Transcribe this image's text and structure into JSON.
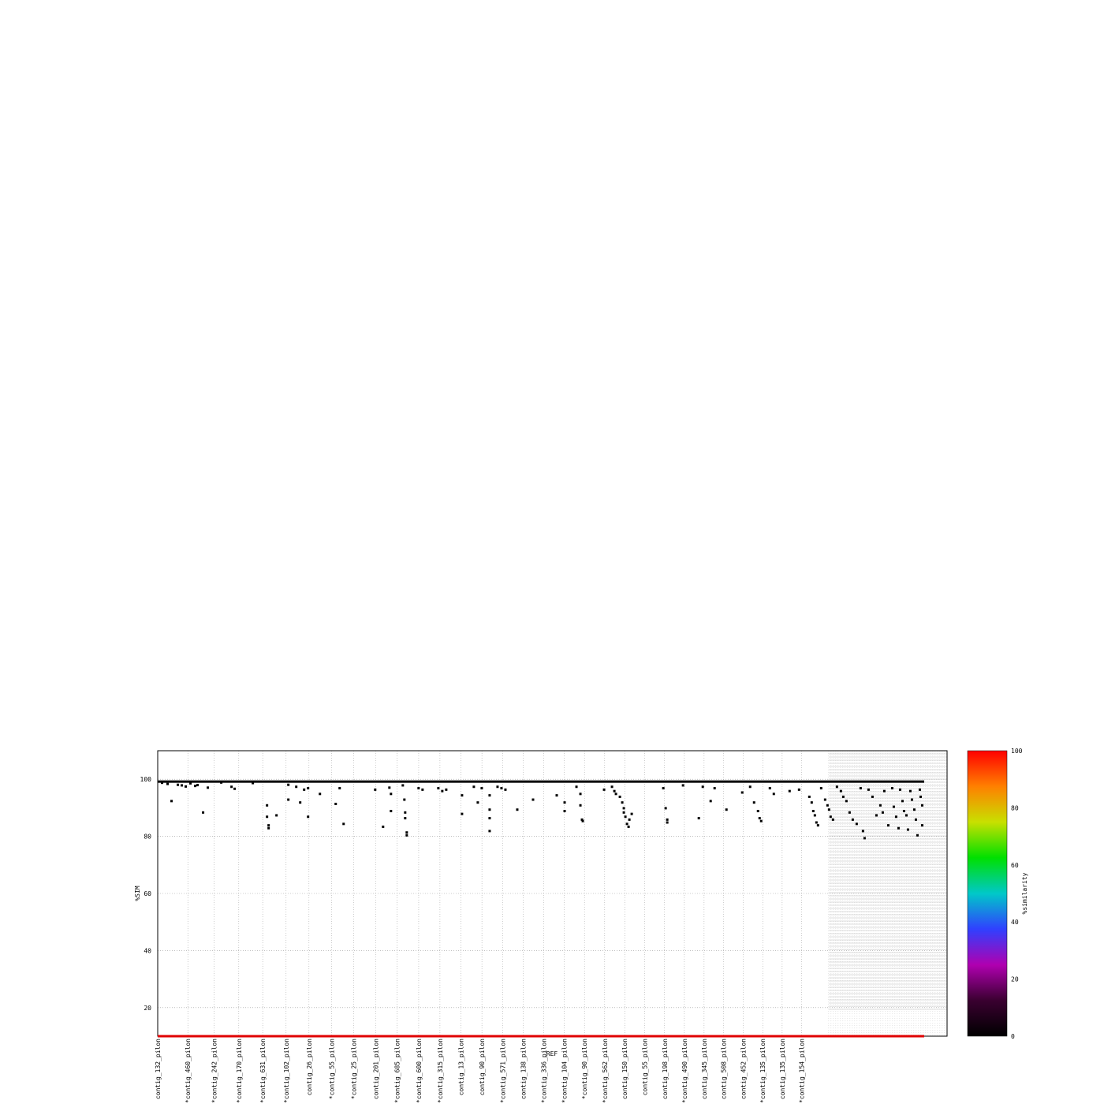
{
  "chart_data": {
    "type": "scatter",
    "title": "",
    "xlabel": "REF",
    "ylabel": "%SIM",
    "ylim": [
      10,
      110
    ],
    "yticks": [
      20,
      40,
      60,
      80,
      100
    ],
    "grid": true,
    "x_tick_labels": [
      "contig_132_pilon",
      "*contig_460_pilon",
      "*contig_242_pilon",
      "*contig_170_pilon",
      "*contig_631_pilon",
      "*contig_102_pilon",
      "contig_26_pilon",
      "*contig_55_pilon",
      "*contig_25_pilon",
      "contig_201_pilon",
      "*contig_685_pilon",
      "*contig_600_pilon",
      "*contig_315_pilon",
      "contig_13_pilon",
      "contig_90_pilon",
      "*contig_571_pilon",
      "contig_138_pilon",
      "*contig_336_pilon",
      "*contig_104_pilon",
      "*contig_90_pilon",
      "*contig_562_pilon",
      "contig_150_pilon",
      "contig_55_pilon",
      "contig_198_pilon",
      "*contig_490_pilon",
      "contig_345_pilon",
      "contig_508_pilon",
      "contig_452_pilon",
      "*contig_135_pilon",
      "contig_135_pilon",
      "*contig_154_pilon"
    ],
    "series": [
      {
        "description": "points",
        "points": [
          [
            0.005,
            98.9
          ],
          [
            0.012,
            98.5
          ],
          [
            0.017,
            92.5
          ],
          [
            0.025,
            98.2
          ],
          [
            0.03,
            98.0
          ],
          [
            0.035,
            97.6
          ],
          [
            0.041,
            98.7
          ],
          [
            0.047,
            97.8
          ],
          [
            0.05,
            98.1
          ],
          [
            0.057,
            88.5
          ],
          [
            0.063,
            97.2
          ],
          [
            0.08,
            99.0
          ],
          [
            0.093,
            97.5
          ],
          [
            0.097,
            96.8
          ],
          [
            0.12,
            98.8
          ],
          [
            0.138,
            91.0
          ],
          [
            0.138,
            87.0
          ],
          [
            0.14,
            84.0
          ],
          [
            0.14,
            83.0
          ],
          [
            0.15,
            87.5
          ],
          [
            0.165,
            93.0
          ],
          [
            0.165,
            98.2
          ],
          [
            0.175,
            97.5
          ],
          [
            0.18,
            92.0
          ],
          [
            0.185,
            96.5
          ],
          [
            0.19,
            87.0
          ],
          [
            0.19,
            97.0
          ],
          [
            0.205,
            95.0
          ],
          [
            0.225,
            91.5
          ],
          [
            0.23,
            97.0
          ],
          [
            0.235,
            84.5
          ],
          [
            0.275,
            96.5
          ],
          [
            0.285,
            83.5
          ],
          [
            0.293,
            97.2
          ],
          [
            0.295,
            95.0
          ],
          [
            0.295,
            89.0
          ],
          [
            0.31,
            98.0
          ],
          [
            0.312,
            93.0
          ],
          [
            0.313,
            88.5
          ],
          [
            0.313,
            86.5
          ],
          [
            0.315,
            81.5
          ],
          [
            0.315,
            80.5
          ],
          [
            0.33,
            97.0
          ],
          [
            0.335,
            96.5
          ],
          [
            0.355,
            97.0
          ],
          [
            0.36,
            96.0
          ],
          [
            0.365,
            96.5
          ],
          [
            0.385,
            94.5
          ],
          [
            0.385,
            88.0
          ],
          [
            0.4,
            97.5
          ],
          [
            0.405,
            92.0
          ],
          [
            0.41,
            97.0
          ],
          [
            0.42,
            94.5
          ],
          [
            0.42,
            89.5
          ],
          [
            0.42,
            86.5
          ],
          [
            0.42,
            82.0
          ],
          [
            0.43,
            97.5
          ],
          [
            0.435,
            97.0
          ],
          [
            0.44,
            96.5
          ],
          [
            0.455,
            89.5
          ],
          [
            0.475,
            93.0
          ],
          [
            0.505,
            94.5
          ],
          [
            0.515,
            92.0
          ],
          [
            0.515,
            89.0
          ],
          [
            0.53,
            97.5
          ],
          [
            0.535,
            95.0
          ],
          [
            0.535,
            91.0
          ],
          [
            0.537,
            86.0
          ],
          [
            0.538,
            85.5
          ],
          [
            0.565,
            96.5
          ],
          [
            0.575,
            97.5
          ],
          [
            0.578,
            96.0
          ],
          [
            0.58,
            95.0
          ],
          [
            0.585,
            94.0
          ],
          [
            0.588,
            92.0
          ],
          [
            0.59,
            90.0
          ],
          [
            0.59,
            88.5
          ],
          [
            0.592,
            87.0
          ],
          [
            0.594,
            84.5
          ],
          [
            0.596,
            83.5
          ],
          [
            0.597,
            86.0
          ],
          [
            0.6,
            88.0
          ],
          [
            0.64,
            97.0
          ],
          [
            0.643,
            90.0
          ],
          [
            0.645,
            86.0
          ],
          [
            0.645,
            85.0
          ],
          [
            0.665,
            98.0
          ],
          [
            0.685,
            86.5
          ],
          [
            0.69,
            97.5
          ],
          [
            0.7,
            92.5
          ],
          [
            0.705,
            97.0
          ],
          [
            0.72,
            89.5
          ],
          [
            0.74,
            95.5
          ],
          [
            0.75,
            97.5
          ],
          [
            0.755,
            92.0
          ],
          [
            0.76,
            89.0
          ],
          [
            0.762,
            86.5
          ],
          [
            0.764,
            85.5
          ],
          [
            0.775,
            97.0
          ],
          [
            0.78,
            95.0
          ],
          [
            0.8,
            96.0
          ],
          [
            0.812,
            96.5
          ],
          [
            0.825,
            94.0
          ],
          [
            0.828,
            92.0
          ],
          [
            0.83,
            89.0
          ],
          [
            0.832,
            87.5
          ],
          [
            0.834,
            85.0
          ],
          [
            0.836,
            84.0
          ],
          [
            0.84,
            97.0
          ],
          [
            0.845,
            93.0
          ],
          [
            0.848,
            91.0
          ],
          [
            0.85,
            89.5
          ],
          [
            0.852,
            87.0
          ],
          [
            0.855,
            86.0
          ],
          [
            0.86,
            97.5
          ],
          [
            0.865,
            96.0
          ],
          [
            0.868,
            94.0
          ],
          [
            0.872,
            92.5
          ],
          [
            0.876,
            88.5
          ],
          [
            0.88,
            86.0
          ],
          [
            0.885,
            84.5
          ],
          [
            0.89,
            97.0
          ],
          [
            0.893,
            82.0
          ],
          [
            0.895,
            79.5
          ],
          [
            0.9,
            96.5
          ],
          [
            0.905,
            94.0
          ],
          [
            0.91,
            87.5
          ],
          [
            0.915,
            91.0
          ],
          [
            0.918,
            88.5
          ],
          [
            0.92,
            96.0
          ],
          [
            0.925,
            84.0
          ],
          [
            0.93,
            97.0
          ],
          [
            0.932,
            90.5
          ],
          [
            0.935,
            87.0
          ],
          [
            0.938,
            83.0
          ],
          [
            0.94,
            96.5
          ],
          [
            0.943,
            92.5
          ],
          [
            0.945,
            89.0
          ],
          [
            0.948,
            87.5
          ],
          [
            0.95,
            82.5
          ],
          [
            0.953,
            96.0
          ],
          [
            0.955,
            93.0
          ],
          [
            0.958,
            89.5
          ],
          [
            0.96,
            86.0
          ],
          [
            0.962,
            80.5
          ],
          [
            0.965,
            96.5
          ],
          [
            0.966,
            94.0
          ],
          [
            0.968,
            91.0
          ],
          [
            0.968,
            84.0
          ]
        ]
      }
    ],
    "reference_line": {
      "value": 10,
      "color": "#e00000"
    }
  },
  "colorbar": {
    "label": "%similarity",
    "ticks": [
      0,
      20,
      40,
      60,
      80,
      100
    ],
    "stops": [
      "#000000",
      "#3a0030",
      "#b000b0",
      "#3040ff",
      "#00c8c8",
      "#00e000",
      "#c8e000",
      "#ff8000",
      "#ff0000"
    ]
  }
}
